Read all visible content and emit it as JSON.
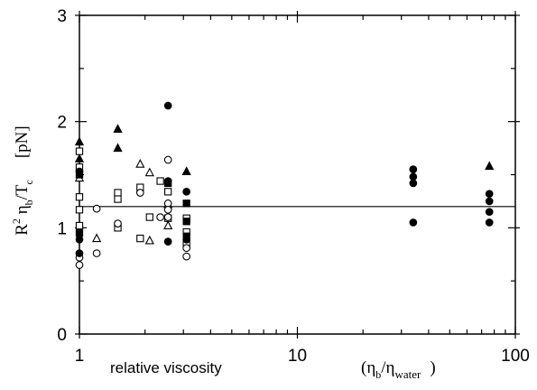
{
  "chart_data": {
    "type": "scatter",
    "log_x": true,
    "xlim": [
      1,
      100
    ],
    "ylim": [
      0,
      3
    ],
    "xticks": [
      1,
      10,
      100
    ],
    "xminorticks": [
      2,
      3,
      4,
      5,
      6,
      7,
      8,
      9,
      20,
      30,
      40,
      50,
      60,
      70,
      80,
      90
    ],
    "yticks": [
      0,
      1,
      2,
      3
    ],
    "yminorticks": [
      0.5,
      1.5,
      2.5
    ],
    "hline": 1.2,
    "xlabel": {
      "text": "relative viscosity",
      "paren_open": "(η",
      "sub1": "b",
      "mid": "/η",
      "sub2": "water",
      "paren_close": ")"
    },
    "ylabel": {
      "base": "R",
      "sup": "2",
      "eta": " η",
      "sub1": "b",
      "mid": "/T",
      "sub2": "c",
      "unit": "[pN]"
    },
    "series": [
      {
        "marker": "triangle",
        "filled": true,
        "color": "#000000",
        "x": [
          1,
          1,
          1.5,
          1.5,
          3.1,
          76
        ],
        "values": [
          1.81,
          1.65,
          1.93,
          1.75,
          1.53,
          1.58
        ]
      },
      {
        "marker": "triangle",
        "filled": false,
        "color": "#000000",
        "x": [
          1,
          1.2,
          1.9,
          2.1,
          2.1,
          2.55,
          2.55
        ],
        "values": [
          1.47,
          0.9,
          1.6,
          1.52,
          0.88,
          1.22,
          1.02
        ]
      },
      {
        "marker": "square",
        "filled": false,
        "color": "#000000",
        "x": [
          1,
          1,
          1,
          1,
          1,
          1.5,
          1.5,
          1.5,
          1.9,
          1.9,
          2.1,
          2.35,
          2.55,
          2.55,
          3.1,
          3.1,
          3.1
        ],
        "values": [
          1.72,
          1.57,
          1.29,
          1.17,
          1.02,
          1.33,
          1.27,
          1.0,
          1.38,
          0.9,
          1.1,
          1.44,
          1.09,
          1.34,
          0.96,
          0.85,
          1.09
        ]
      },
      {
        "marker": "square",
        "filled": true,
        "color": "#000000",
        "x": [
          1,
          1,
          3.1,
          3.1,
          3.1,
          2.55
        ],
        "values": [
          1.5,
          0.95,
          1.23,
          1.06,
          0.92,
          1.42
        ]
      },
      {
        "marker": "circle",
        "filled": false,
        "color": "#000000",
        "x": [
          1,
          1,
          1.2,
          1.2,
          1.5,
          2.35,
          2.55,
          2.55,
          2.55,
          2.55,
          3.1,
          3.1,
          1.9
        ],
        "values": [
          0.65,
          0.72,
          1.18,
          0.76,
          1.04,
          1.1,
          1.64,
          1.23,
          1.1,
          1.17,
          0.81,
          0.73,
          1.33
        ]
      },
      {
        "marker": "circle",
        "filled": true,
        "color": "#000000",
        "x": [
          1,
          1,
          1,
          2.55,
          2.55,
          2.55,
          3.1,
          3.1,
          34,
          34,
          34,
          34,
          76,
          76,
          76,
          76
        ],
        "values": [
          1.53,
          0.76,
          0.89,
          2.15,
          0.87,
          1.44,
          1.34,
          0.89,
          1.55,
          1.48,
          1.42,
          1.05,
          1.32,
          1.25,
          1.15,
          1.05
        ]
      }
    ]
  }
}
